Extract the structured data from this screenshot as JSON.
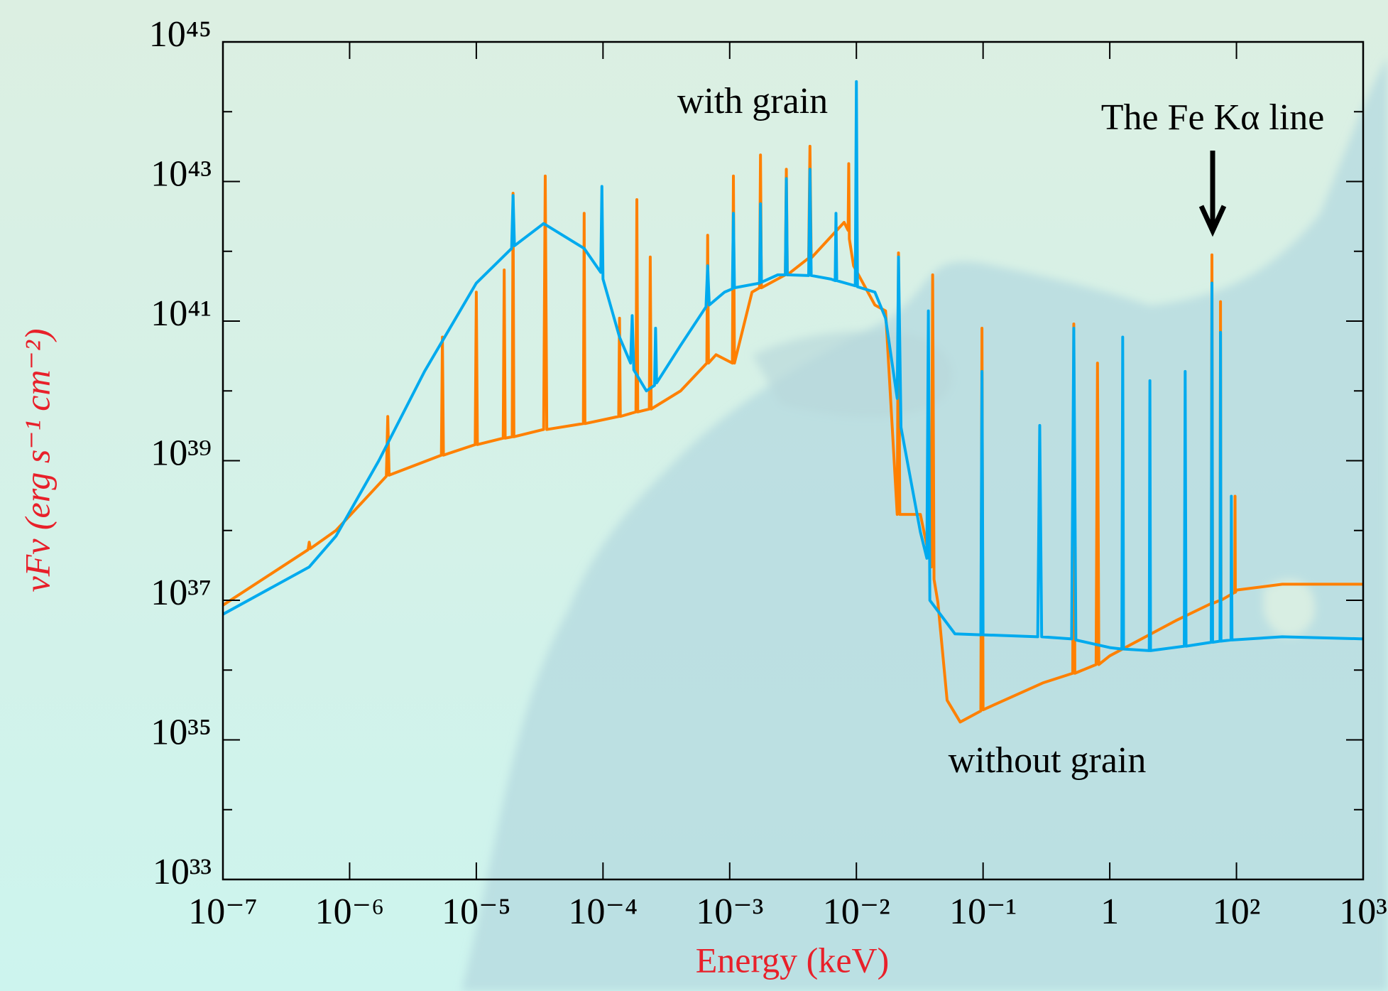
{
  "chart_data": {
    "type": "line",
    "xlabel": "Energy (keV)",
    "ylabel": "νFν (erg s⁻¹ cm⁻²)",
    "xlog": true,
    "ylog": true,
    "xlim": [
      1e-07,
      1000
    ],
    "ylim": [
      1e+33,
      1e+45
    ],
    "xticks": [
      {
        "value": 1e-07,
        "label": "10⁻⁷"
      },
      {
        "value": 1e-06,
        "label": "10⁻⁶"
      },
      {
        "value": 1e-05,
        "label": "10⁻⁵"
      },
      {
        "value": 0.0001,
        "label": "10⁻⁴"
      },
      {
        "value": 0.001,
        "label": "10⁻³"
      },
      {
        "value": 0.01,
        "label": "10⁻²"
      },
      {
        "value": 0.1,
        "label": "10⁻¹"
      },
      1,
      {
        "value": 100,
        "label": "10²"
      },
      {
        "value": 1000,
        "label": "10³"
      }
    ],
    "yticks": [
      {
        "value": 1e+33,
        "label": "10³³"
      },
      {
        "value": 1e+35,
        "label": "10³⁵"
      },
      {
        "value": 1e+37,
        "label": "10³⁷"
      },
      {
        "value": 1e+39,
        "label": "10³⁹"
      },
      {
        "value": 1e+41,
        "label": "10⁴¹"
      },
      {
        "value": 1e+43,
        "label": "10⁴³"
      },
      {
        "value": 1e+45,
        "label": "10⁴⁵"
      }
    ],
    "yminorticks": [
      1e+34,
      1e+36,
      1e+38,
      1e+40,
      1e+42,
      1e+44
    ],
    "annotations": [
      "The Fe Kα line"
    ],
    "series": [
      {
        "name": "without grain",
        "color": "#ff8000",
        "x": [
          1e-07,
          4.7e-07,
          4.8e-07,
          4.9e-07,
          7.8e-07,
          1.95e-06,
          2e-06,
          2.05e-06,
          5.3e-06,
          5.4e-06,
          5.5e-06,
          9.8e-06,
          1e-05,
          1.02e-05,
          1.63e-05,
          1.66e-05,
          1.69e-05,
          1.92e-05,
          1.95e-05,
          1.98e-05,
          3.4e-05,
          3.5e-05,
          3.6e-05,
          7e-05,
          7.1e-05,
          7.2e-05,
          0.000133,
          0.000135,
          0.000137,
          0.000182,
          0.000185,
          0.000188,
          0.000232,
          0.000236,
          0.00024,
          0.00041,
          0.00066,
          0.00067,
          0.00068,
          0.00078,
          0.00105,
          0.00107,
          0.00109,
          0.0015,
          0.00172,
          0.00175,
          0.00178,
          0.00275,
          0.0028,
          0.00285,
          0.0042,
          0.0043,
          0.0044,
          0.008,
          0.0086,
          0.0087,
          0.0088,
          0.0095,
          0.014,
          0.017,
          0.021,
          0.0215,
          0.022,
          0.032,
          0.039,
          0.04,
          0.041,
          0.044,
          0.052,
          0.066,
          0.096,
          0.098,
          0.1,
          0.3,
          0.51,
          0.52,
          0.53,
          0.78,
          0.8,
          0.82,
          1,
          11,
          40,
          41,
          42,
          55,
          56,
          57,
          94,
          95,
          96,
          100,
          230,
          1000
        ],
        "values": [
          8.5e+36,
          5.3e+37,
          6.8e+37,
          5.5e+37,
          1e+38,
          6e+38,
          4.3e+39,
          6.2e+38,
          1.2e+39,
          5.9e+40,
          1.2e+39,
          1.7e+39,
          2.6e+41,
          1.7e+39,
          2.1e+39,
          5.4e+41,
          2.1e+39,
          2.2e+39,
          6.8e+42,
          2.2e+39,
          2.8e+39,
          1.2e+43,
          2.8e+39,
          3.4e+39,
          3.5e+42,
          3.4e+39,
          4.3e+39,
          1.1e+41,
          4.3e+39,
          5e+39,
          5.5e+42,
          5e+39,
          5.5e+39,
          8.3e+41,
          5.5e+39,
          1e+40,
          2.5e+40,
          1.7e+42,
          2.5e+40,
          3.3e+40,
          2.5e+40,
          1.2e+43,
          2.5e+40,
          2.6e+41,
          3e+41,
          2.4e+43,
          3e+41,
          4.6e+41,
          1.5e+43,
          4.6e+41,
          8e+41,
          3.2e+43,
          8e+41,
          2.6e+42,
          2e+42,
          1.8e+43,
          1.5e+42,
          6.2e+41,
          1.7e+41,
          1.4e+41,
          1.7e+38,
          9.5e+41,
          1.7e+38,
          1.7e+38,
          3e+37,
          4.6e+41,
          2e+37,
          9.3e+36,
          3.7e+35,
          1.8e+35,
          2.6e+35,
          7.9e+40,
          2.7e+35,
          6.6e+35,
          9e+35,
          9.1e+40,
          9e+35,
          1.2e+36,
          2.5e+40,
          1.2e+36,
          1.6e+36,
          5.1e+36,
          9e+36,
          8.9e+41,
          9e+36,
          1e+37,
          1.9e+41,
          1e+37,
          1.3e+37,
          3.1e+38,
          1.3e+37,
          1.4e+37,
          1.7e+37,
          1.7e+37
        ]
      },
      {
        "name": "with grain",
        "color": "#00aaee",
        "x": [
          1e-07,
          4.8e-07,
          7.8e-07,
          1.7e-06,
          3.9e-06,
          1e-05,
          1.9e-05,
          1.95e-05,
          2e-05,
          3.4e-05,
          7.1e-05,
          9.6e-05,
          9.8e-05,
          0.0001,
          0.000135,
          0.000165,
          0.00017,
          0.000175,
          0.00022,
          0.000255,
          0.00026,
          0.000265,
          0.00041,
          0.00065,
          0.00067,
          0.00069,
          0.00091,
          0.00105,
          0.00107,
          0.00109,
          0.00172,
          0.00175,
          0.00178,
          0.0024,
          0.00275,
          0.0028,
          0.00285,
          0.0042,
          0.0043,
          0.0044,
          0.0063,
          0.0068,
          0.0069,
          0.007,
          0.0098,
          0.01,
          0.0102,
          0.014,
          0.017,
          0.021,
          0.0215,
          0.0225,
          0.032,
          0.036,
          0.037,
          0.038,
          0.06,
          0.096,
          0.098,
          0.1,
          0.27,
          0.28,
          0.29,
          0.5,
          0.52,
          0.54,
          1,
          1.55,
          1.6,
          1.65,
          4.2,
          4.3,
          4.4,
          15,
          15.5,
          16,
          40,
          41,
          42,
          55,
          56,
          57,
          82,
          83,
          85,
          230,
          1000
        ],
        "values": [
          6.3e+36,
          3e+37,
          8.3e+37,
          1e+39,
          1.9e+40,
          3.5e+41,
          1.1e+42,
          6.3e+42,
          1.2e+42,
          2.5e+42,
          1.1e+42,
          5e+41,
          8.5e+42,
          4e+41,
          5.9e+40,
          2.5e+40,
          1.2e+41,
          2e+40,
          1e+40,
          1.2e+40,
          7.9e+40,
          1.3e+40,
          4.5e+40,
          1.6e+41,
          6.2e+41,
          1.7e+41,
          2.6e+41,
          2.9e+41,
          3.5e+42,
          3e+41,
          3.5e+41,
          4.8e+42,
          3.6e+41,
          4.6e+41,
          4.6e+41,
          1.1e+43,
          4.6e+41,
          4.5e+41,
          1.5e+43,
          4.5e+41,
          4e+41,
          3.8e+41,
          3.5e+42,
          3.8e+41,
          3.2e+41,
          2.7e+44,
          3.1e+41,
          2.6e+41,
          1.1e+41,
          7.8e+39,
          8.3e+41,
          3e+39,
          9.5e+37,
          4e+37,
          1.4e+41,
          1e+37,
          3.3e+36,
          3.2e+36,
          1.9e+40,
          3.2e+36,
          3e+36,
          3.2e+39,
          3e+36,
          2.8e+36,
          7.9e+40,
          2.7e+36,
          2.1e+36,
          2e+36,
          5.9e+40,
          2e+36,
          1.9e+36,
          1.4e+40,
          1.9e+36,
          2.2e+36,
          1.9e+40,
          2.2e+36,
          2.5e+36,
          3.5e+41,
          2.5e+36,
          2.6e+36,
          6.9e+40,
          2.6e+36,
          2.7e+36,
          3.1e+38,
          2.7e+36,
          3e+36,
          2.8e+36
        ]
      }
    ]
  }
}
